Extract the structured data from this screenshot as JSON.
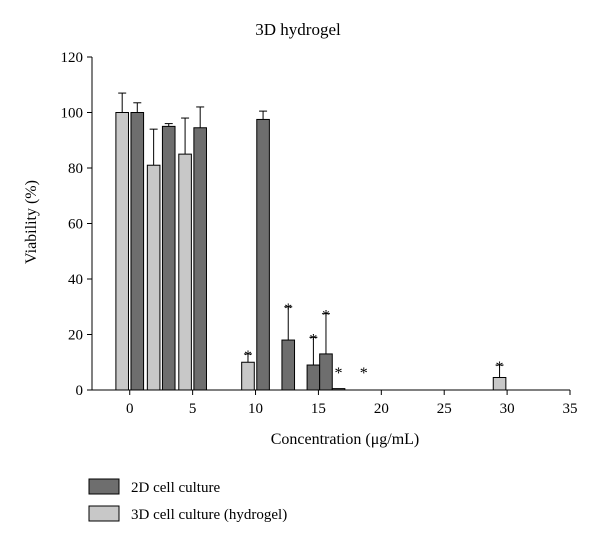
{
  "chart_data": {
    "type": "bar",
    "title": "3D hydrogel",
    "xlabel": "Concentration (μg/mL)",
    "ylabel": "Viability (%)",
    "xlim": [
      -3,
      35
    ],
    "ylim": [
      0,
      120
    ],
    "xticks": [
      0,
      5,
      10,
      15,
      20,
      25,
      30,
      35
    ],
    "yticks": [
      0,
      20,
      40,
      60,
      80,
      100,
      120
    ],
    "grid": false,
    "legend_position": "bottom-left",
    "series": [
      {
        "name": "2D cell culture",
        "color": "#6e6e6e",
        "points": [
          {
            "x": 0.6,
            "y": 100,
            "err": 3.5,
            "sig": false
          },
          {
            "x": 3.1,
            "y": 95,
            "err": 1,
            "sig": false
          },
          {
            "x": 5.6,
            "y": 94.5,
            "err": 7.5,
            "sig": false
          },
          {
            "x": 10.6,
            "y": 97.5,
            "err": 3,
            "sig": false
          },
          {
            "x": 12.6,
            "y": 18,
            "err": 12,
            "sig": true
          },
          {
            "x": 14.6,
            "y": 9,
            "err": 10,
            "sig": true
          },
          {
            "x": 15.6,
            "y": 13,
            "err": 14.5,
            "sig": true
          },
          {
            "x": 16.6,
            "y": 0.5,
            "err": 0,
            "sig": true
          },
          {
            "x": 18.6,
            "y": 0,
            "err": 0,
            "sig": true
          }
        ]
      },
      {
        "name": "3D cell culture (hydrogel)",
        "color": "#c8c8c8",
        "points": [
          {
            "x": -0.6,
            "y": 100,
            "err": 7,
            "sig": false
          },
          {
            "x": 1.9,
            "y": 81,
            "err": 13,
            "sig": false
          },
          {
            "x": 4.4,
            "y": 85,
            "err": 13,
            "sig": false
          },
          {
            "x": 9.4,
            "y": 10,
            "err": 3,
            "sig": true
          },
          {
            "x": 29.4,
            "y": 4.5,
            "err": 4.5,
            "sig": true
          }
        ]
      }
    ],
    "significance_marker": "*"
  }
}
